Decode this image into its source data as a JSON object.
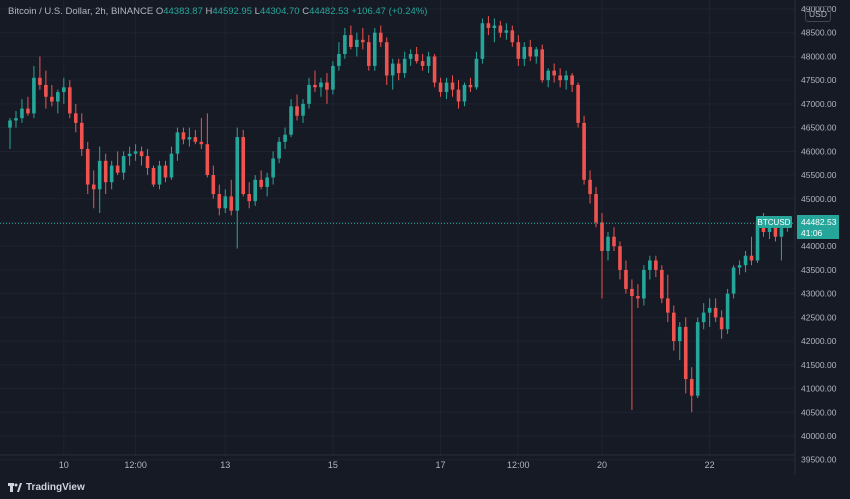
{
  "legend": {
    "symbol_desc": "Bitcoin / U.S. Dollar, 2h, BINANCE",
    "o_label": "O",
    "o_value": "44383.87",
    "h_label": "H",
    "h_value": "44592.95",
    "l_label": "L",
    "l_value": "44304.70",
    "c_label": "C",
    "c_value": "44482.53",
    "change": "+106.47 (+0.24%)"
  },
  "currency_badge": "USD",
  "branding": "TradingView",
  "price_tag": {
    "symbol": "BTCUSD",
    "price": "44482.53",
    "countdown": "41:06"
  },
  "colors": {
    "bg": "#161a25",
    "grid": "#1f2330",
    "up": "#26a69a",
    "down": "#ef5350",
    "text": "#b2b5be",
    "tag": "#26a69a"
  },
  "chart_data": {
    "type": "candlestick",
    "ylim": [
      39200,
      49000
    ],
    "yticks": [
      39500,
      40000,
      40500,
      41000,
      41500,
      42000,
      42500,
      43000,
      43500,
      44000,
      44500,
      45000,
      45500,
      46000,
      46500,
      47000,
      47500,
      48000,
      48500,
      49000
    ],
    "ytick_labels": [
      "39500.00",
      "40000.00",
      "40500.00",
      "41000.00",
      "41500.00",
      "42000.00",
      "42500.00",
      "43000.00",
      "43500.00",
      "44000.00",
      "44500.00",
      "45000.00",
      "45500.00",
      "46000.00",
      "46500.00",
      "47000.00",
      "47500.00",
      "48000.00",
      "48500.00",
      "49000.00"
    ],
    "xticks": [
      {
        "index": 9,
        "label": "10"
      },
      {
        "index": 21,
        "label": "12:00"
      },
      {
        "index": 36,
        "label": "13"
      },
      {
        "index": 54,
        "label": "15"
      },
      {
        "index": 72,
        "label": "17"
      },
      {
        "index": 85,
        "label": "12:00"
      },
      {
        "index": 99,
        "label": "20"
      },
      {
        "index": 117,
        "label": "22"
      }
    ],
    "last_price": 44482.53,
    "grid": true,
    "candles": [
      [
        46500,
        46700,
        46050,
        46650
      ],
      [
        46650,
        46850,
        46500,
        46700
      ],
      [
        46700,
        47100,
        46600,
        46900
      ],
      [
        46900,
        47150,
        46750,
        46800
      ],
      [
        46800,
        47800,
        46700,
        47550
      ],
      [
        47550,
        48000,
        47300,
        47400
      ],
      [
        47400,
        47700,
        46900,
        47150
      ],
      [
        47150,
        47400,
        46950,
        47050
      ],
      [
        47050,
        47300,
        46800,
        47250
      ],
      [
        47250,
        47550,
        47000,
        47350
      ],
      [
        47350,
        47500,
        46700,
        46800
      ],
      [
        46800,
        47000,
        46400,
        46600
      ],
      [
        46600,
        46800,
        45900,
        46050
      ],
      [
        46050,
        46200,
        45100,
        45300
      ],
      [
        45300,
        45600,
        44800,
        45200
      ],
      [
        45200,
        46100,
        44700,
        45800
      ],
      [
        45800,
        45950,
        45100,
        45350
      ],
      [
        45350,
        45800,
        45200,
        45700
      ],
      [
        45700,
        46000,
        45500,
        45550
      ],
      [
        45550,
        46000,
        45400,
        45900
      ],
      [
        45900,
        46100,
        45700,
        45950
      ],
      [
        45950,
        46150,
        45800,
        46000
      ],
      [
        46000,
        46100,
        45700,
        45900
      ],
      [
        45900,
        46050,
        45500,
        45650
      ],
      [
        45650,
        45700,
        45250,
        45300
      ],
      [
        45300,
        45800,
        45200,
        45700
      ],
      [
        45700,
        45800,
        45350,
        45450
      ],
      [
        45450,
        46100,
        45400,
        45950
      ],
      [
        45950,
        46500,
        45800,
        46400
      ],
      [
        46400,
        46500,
        46150,
        46250
      ],
      [
        46250,
        46500,
        46100,
        46300
      ],
      [
        46300,
        46450,
        46150,
        46200
      ],
      [
        46200,
        46700,
        46050,
        46150
      ],
      [
        46150,
        46800,
        45450,
        45500
      ],
      [
        45500,
        45700,
        45000,
        45100
      ],
      [
        45100,
        45300,
        44650,
        44800
      ],
      [
        44800,
        45200,
        44700,
        45050
      ],
      [
        45050,
        45400,
        44650,
        44750
      ],
      [
        44750,
        46500,
        43950,
        46300
      ],
      [
        46300,
        46450,
        45050,
        45100
      ],
      [
        45100,
        45350,
        44800,
        44950
      ],
      [
        44950,
        45500,
        44850,
        45400
      ],
      [
        45400,
        45600,
        45200,
        45250
      ],
      [
        45250,
        45550,
        45050,
        45450
      ],
      [
        45450,
        46000,
        45300,
        45850
      ],
      [
        45850,
        46300,
        45750,
        46200
      ],
      [
        46200,
        46500,
        46050,
        46350
      ],
      [
        46350,
        47100,
        46300,
        46950
      ],
      [
        46950,
        47200,
        46650,
        46750
      ],
      [
        46750,
        47100,
        46600,
        47000
      ],
      [
        47000,
        47550,
        46900,
        47400
      ],
      [
        47400,
        47700,
        47250,
        47350
      ],
      [
        47350,
        47550,
        47150,
        47450
      ],
      [
        47450,
        47650,
        47000,
        47300
      ],
      [
        47300,
        47900,
        47200,
        47800
      ],
      [
        47800,
        48300,
        47700,
        48050
      ],
      [
        48050,
        48600,
        47950,
        48450
      ],
      [
        48450,
        48650,
        48150,
        48200
      ],
      [
        48200,
        48500,
        48000,
        48350
      ],
      [
        48350,
        48600,
        48150,
        48300
      ],
      [
        48300,
        48450,
        47700,
        47800
      ],
      [
        47800,
        48600,
        47700,
        48500
      ],
      [
        48500,
        48650,
        48200,
        48300
      ],
      [
        48300,
        48400,
        47400,
        47600
      ],
      [
        47600,
        47950,
        47300,
        47850
      ],
      [
        47850,
        47950,
        47500,
        47650
      ],
      [
        47650,
        48100,
        47550,
        47950
      ],
      [
        47950,
        48150,
        47800,
        48050
      ],
      [
        48050,
        48200,
        47850,
        47900
      ],
      [
        47900,
        48050,
        47700,
        47800
      ],
      [
        47800,
        48100,
        47650,
        48000
      ],
      [
        48000,
        48050,
        47350,
        47450
      ],
      [
        47450,
        47550,
        47150,
        47250
      ],
      [
        47250,
        47550,
        47100,
        47450
      ],
      [
        47450,
        47600,
        47150,
        47300
      ],
      [
        47300,
        47500,
        46900,
        47050
      ],
      [
        47050,
        47450,
        46950,
        47400
      ],
      [
        47400,
        47550,
        47250,
        47350
      ],
      [
        47350,
        48100,
        47300,
        47950
      ],
      [
        47950,
        48800,
        47850,
        48700
      ],
      [
        48700,
        48850,
        48450,
        48600
      ],
      [
        48600,
        48800,
        48300,
        48650
      ],
      [
        48650,
        48750,
        48400,
        48500
      ],
      [
        48500,
        48700,
        48350,
        48550
      ],
      [
        48550,
        48650,
        48200,
        48300
      ],
      [
        48300,
        48450,
        47800,
        47950
      ],
      [
        47950,
        48300,
        47800,
        48200
      ],
      [
        48200,
        48350,
        47900,
        48000
      ],
      [
        48000,
        48200,
        47850,
        48150
      ],
      [
        48150,
        48250,
        47450,
        47500
      ],
      [
        47500,
        47750,
        47350,
        47700
      ],
      [
        47700,
        47850,
        47450,
        47600
      ],
      [
        47600,
        47750,
        47350,
        47500
      ],
      [
        47500,
        47700,
        47300,
        47600
      ],
      [
        47600,
        47650,
        47250,
        47400
      ],
      [
        47400,
        47450,
        46500,
        46600
      ],
      [
        46600,
        46750,
        45300,
        45400
      ],
      [
        45400,
        45600,
        44900,
        45100
      ],
      [
        45100,
        45250,
        44400,
        44500
      ],
      [
        44500,
        44700,
        42900,
        43900
      ],
      [
        43900,
        44300,
        43700,
        44200
      ],
      [
        44200,
        44400,
        43900,
        44000
      ],
      [
        44000,
        44100,
        43300,
        43500
      ],
      [
        43500,
        43700,
        43000,
        43100
      ],
      [
        43100,
        43300,
        40550,
        42950
      ],
      [
        42950,
        43200,
        42700,
        42900
      ],
      [
        42900,
        43600,
        42750,
        43500
      ],
      [
        43500,
        43800,
        43300,
        43700
      ],
      [
        43700,
        43800,
        43350,
        43500
      ],
      [
        43500,
        43600,
        42800,
        42900
      ],
      [
        42900,
        43400,
        42400,
        42600
      ],
      [
        42600,
        42750,
        41800,
        42000
      ],
      [
        42000,
        42400,
        41600,
        42300
      ],
      [
        42300,
        42500,
        40900,
        41200
      ],
      [
        41200,
        41450,
        40500,
        40850
      ],
      [
        40850,
        42500,
        40800,
        42400
      ],
      [
        42400,
        42800,
        42250,
        42600
      ],
      [
        42600,
        42900,
        42300,
        42700
      ],
      [
        42700,
        42900,
        42400,
        42500
      ],
      [
        42500,
        42650,
        42050,
        42250
      ],
      [
        42250,
        43100,
        42150,
        43000
      ],
      [
        43000,
        43600,
        42900,
        43550
      ],
      [
        43550,
        43700,
        43400,
        43600
      ],
      [
        43600,
        43900,
        43450,
        43800
      ],
      [
        43800,
        44200,
        43600,
        43700
      ],
      [
        43700,
        44600,
        43650,
        44500
      ],
      [
        44500,
        44700,
        44200,
        44300
      ],
      [
        44300,
        44550,
        44150,
        44450
      ],
      [
        44450,
        44600,
        44100,
        44200
      ],
      [
        44200,
        44400,
        43700,
        44380
      ],
      [
        44383.87,
        44592.95,
        44304.7,
        44482.53
      ]
    ]
  }
}
